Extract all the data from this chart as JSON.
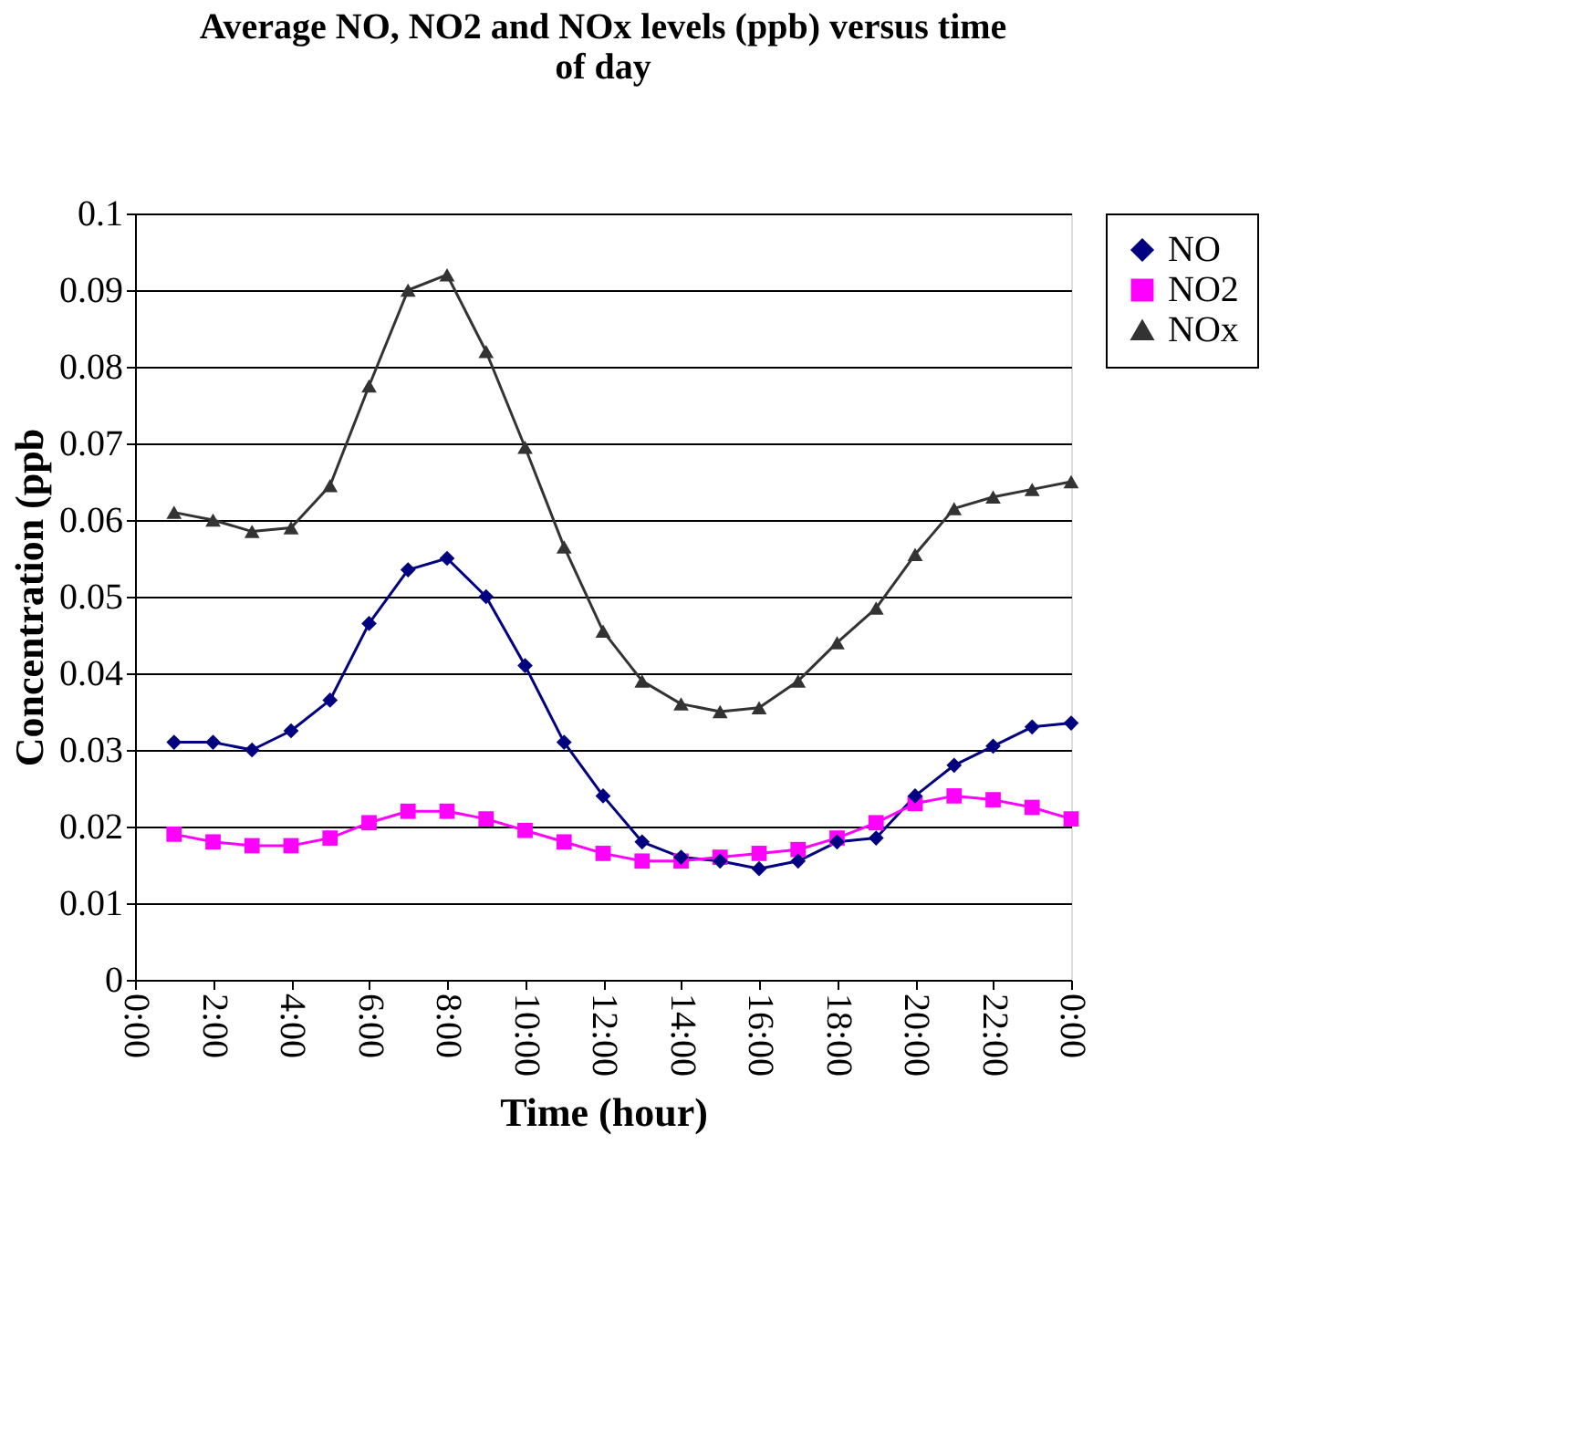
{
  "chart_data": {
    "type": "line",
    "title": "Average NO, NO2 and NOx levels (ppb) versus time of day",
    "xlabel": "Time (hour)",
    "ylabel": "Concentration (ppb",
    "x": [
      1,
      2,
      3,
      4,
      5,
      6,
      7,
      8,
      9,
      10,
      11,
      12,
      13,
      14,
      15,
      16,
      17,
      18,
      19,
      20,
      21,
      22,
      23,
      24
    ],
    "series": [
      {
        "name": "NO",
        "color": "#000080",
        "marker": "diamond",
        "values": [
          0.031,
          0.031,
          0.03,
          0.0325,
          0.0365,
          0.0465,
          0.0535,
          0.055,
          0.05,
          0.041,
          0.031,
          0.024,
          0.018,
          0.016,
          0.0155,
          0.0145,
          0.0155,
          0.018,
          0.0185,
          0.024,
          0.028,
          0.0305,
          0.033,
          0.0335
        ]
      },
      {
        "name": "NO2",
        "color": "#ff00ff",
        "marker": "square",
        "values": [
          0.019,
          0.018,
          0.0175,
          0.0175,
          0.0185,
          0.0205,
          0.022,
          0.022,
          0.021,
          0.0195,
          0.018,
          0.0165,
          0.0155,
          0.0155,
          0.016,
          0.0165,
          0.017,
          0.0185,
          0.0205,
          0.023,
          0.024,
          0.0235,
          0.0225,
          0.021
        ]
      },
      {
        "name": "NOx",
        "color": "#333333",
        "marker": "triangle",
        "values": [
          0.061,
          0.06,
          0.0585,
          0.059,
          0.0645,
          0.0775,
          0.09,
          0.092,
          0.082,
          0.0695,
          0.0565,
          0.0455,
          0.039,
          0.036,
          0.035,
          0.0355,
          0.039,
          0.044,
          0.0485,
          0.0555,
          0.0615,
          0.063,
          0.064,
          0.065
        ]
      }
    ],
    "xlim": [
      0,
      24
    ],
    "xticks": [
      {
        "value": 0,
        "label": "0:00"
      },
      {
        "value": 2,
        "label": "2:00"
      },
      {
        "value": 4,
        "label": "4:00"
      },
      {
        "value": 6,
        "label": "6:00"
      },
      {
        "value": 8,
        "label": "8:00"
      },
      {
        "value": 10,
        "label": "10:00"
      },
      {
        "value": 12,
        "label": "12:00"
      },
      {
        "value": 14,
        "label": "14:00"
      },
      {
        "value": 16,
        "label": "16:00"
      },
      {
        "value": 18,
        "label": "18:00"
      },
      {
        "value": 20,
        "label": "20:00"
      },
      {
        "value": 22,
        "label": "22:00"
      },
      {
        "value": 24,
        "label": "0:00"
      }
    ],
    "ylim": [
      0,
      0.1
    ],
    "yticks": [
      0,
      0.01,
      0.02,
      0.03,
      0.04,
      0.05,
      0.06,
      0.07,
      0.08,
      0.09,
      0.1
    ],
    "grid": "y",
    "legend": "right",
    "line_style": "solid"
  }
}
